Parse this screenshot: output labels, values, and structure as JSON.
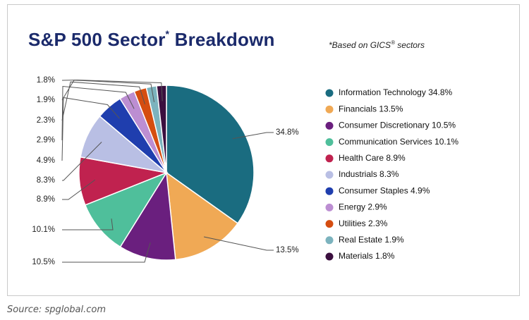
{
  "header": {
    "title_main": "S&P 500 Sector",
    "title_star": "*",
    "title_tail": " Breakdown",
    "subtitle_pre": "*Based on GICS",
    "subtitle_reg": "®",
    "subtitle_post": " sectors"
  },
  "footer": {
    "source": "Source: spglobal.com"
  },
  "chart_data": {
    "type": "pie",
    "title": "S&P 500 Sector* Breakdown",
    "legend_position": "right",
    "slices": [
      {
        "name": "Information Technology",
        "value": 34.8,
        "label": "34.8%",
        "color": "#1a6c80"
      },
      {
        "name": "Financials",
        "value": 13.5,
        "label": "13.5%",
        "color": "#f0a955"
      },
      {
        "name": "Consumer Discretionary",
        "value": 10.5,
        "label": "10.5%",
        "color": "#6a1f7e"
      },
      {
        "name": "Communication Services",
        "value": 10.1,
        "label": "10.1%",
        "color": "#4fbf9b"
      },
      {
        "name": "Health Care",
        "value": 8.9,
        "label": "8.9%",
        "color": "#c0224f"
      },
      {
        "name": "Industrials",
        "value": 8.3,
        "label": "8.3%",
        "color": "#b9bfe4"
      },
      {
        "name": "Consumer Staples",
        "value": 4.9,
        "label": "4.9%",
        "color": "#1f3eae"
      },
      {
        "name": "Energy",
        "value": 2.9,
        "label": "2.9%",
        "color": "#bc8ed2"
      },
      {
        "name": "Utilities",
        "value": 2.3,
        "label": "2.3%",
        "color": "#d54d10"
      },
      {
        "name": "Real Estate",
        "value": 1.9,
        "label": "1.9%",
        "color": "#7cb3be"
      },
      {
        "name": "Materials",
        "value": 1.8,
        "label": "1.8%",
        "color": "#3b0f3f"
      }
    ]
  }
}
